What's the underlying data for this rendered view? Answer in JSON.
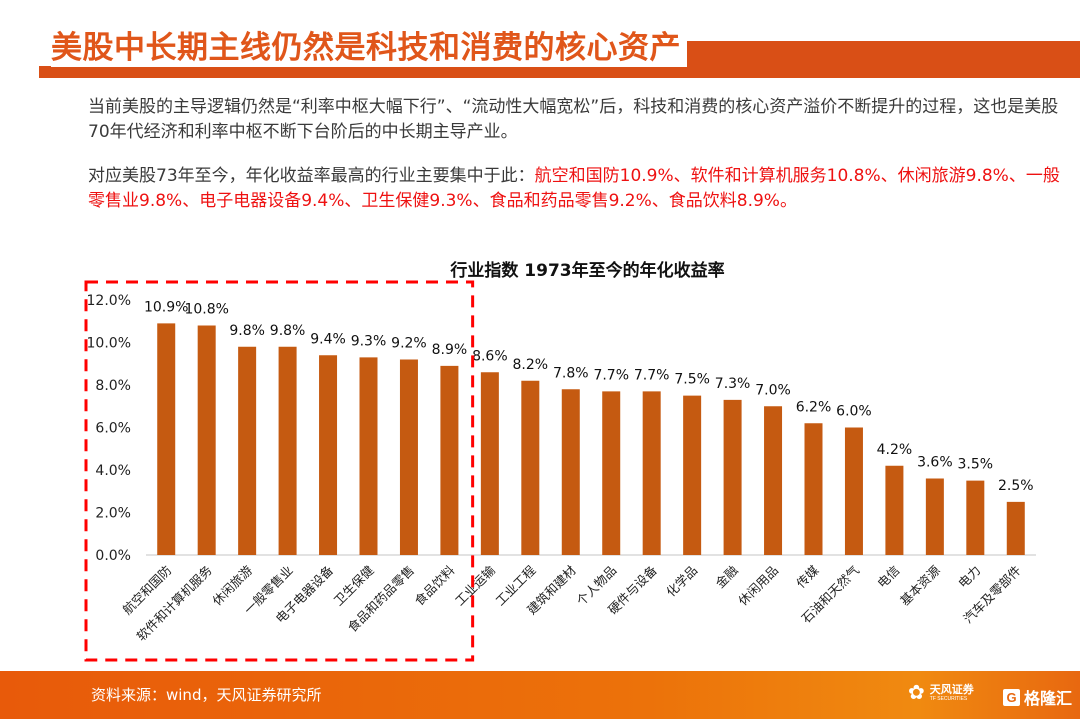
{
  "header": {
    "title": "美股中长期主线仍然是科技和消费的核心资产"
  },
  "body": {
    "paragraph1": "当前美股的主导逻辑仍然是“利率中枢大幅下行”、“流动性大幅宽松”后，科技和消费的核心资产溢价不断提升的过程，这也是美股70年代经济和利率中枢不断下台阶后的中长期主导产业。",
    "paragraph2_prefix": "对应美股73年至今，年化收益率最高的行业主要集中于此：",
    "paragraph2_highlight": "航空和国防10.9%、软件和计算机服务10.8%、休闲旅游9.8%、一般零售业9.8%、电子电器设备9.4%、卫生保健9.3%、食品和药品零售9.2%、食品饮料8.9%。"
  },
  "chart_data": {
    "type": "bar",
    "title": "行业指数 1973年至今的年化收益率",
    "xlabel": "",
    "ylabel": "",
    "ylim": [
      0,
      12
    ],
    "yticks": [
      "0.0%",
      "2.0%",
      "4.0%",
      "6.0%",
      "8.0%",
      "10.0%",
      "12.0%"
    ],
    "ytick_values": [
      0,
      2,
      4,
      6,
      8,
      10,
      12
    ],
    "grid": false,
    "legend": "none",
    "bar_color": "#c55a11",
    "highlight_box_color": "#ff0000",
    "highlight_count": 8,
    "categories": [
      "航空和国防",
      "软件和计算机服务",
      "休闲旅游",
      "一般零售业",
      "电子电器设备",
      "卫生保健",
      "食品和药品零售",
      "食品饮料",
      "工业运输",
      "工业工程",
      "建筑和建材",
      "个人物品",
      "硬件与设备",
      "化学品",
      "金融",
      "休闲用品",
      "传媒",
      "石油和天然气",
      "电信",
      "基本资源",
      "电力",
      "汽车及零部件"
    ],
    "values": [
      10.9,
      10.8,
      9.8,
      9.8,
      9.4,
      9.3,
      9.2,
      8.9,
      8.6,
      8.2,
      7.8,
      7.7,
      7.7,
      7.5,
      7.3,
      7.0,
      6.2,
      6.0,
      4.2,
      3.6,
      3.5,
      2.5
    ],
    "data_labels": [
      "10.9%",
      "10.8%",
      "9.8%",
      "9.8%",
      "9.4%",
      "9.3%",
      "9.2%",
      "8.9%",
      "8.6%",
      "8.2%",
      "7.8%",
      "7.7%",
      "7.7%",
      "7.5%",
      "7.3%",
      "7.0%",
      "6.2%",
      "6.0%",
      "4.2%",
      "3.6%",
      "3.5%",
      "2.5%"
    ]
  },
  "footer": {
    "source": "资料来源：wind，天风证券研究所",
    "logo1_name": "天风证券",
    "logo1_sub": "TF SECURITIES",
    "logo2_name": "格隆汇",
    "logo2_mark": "G"
  }
}
